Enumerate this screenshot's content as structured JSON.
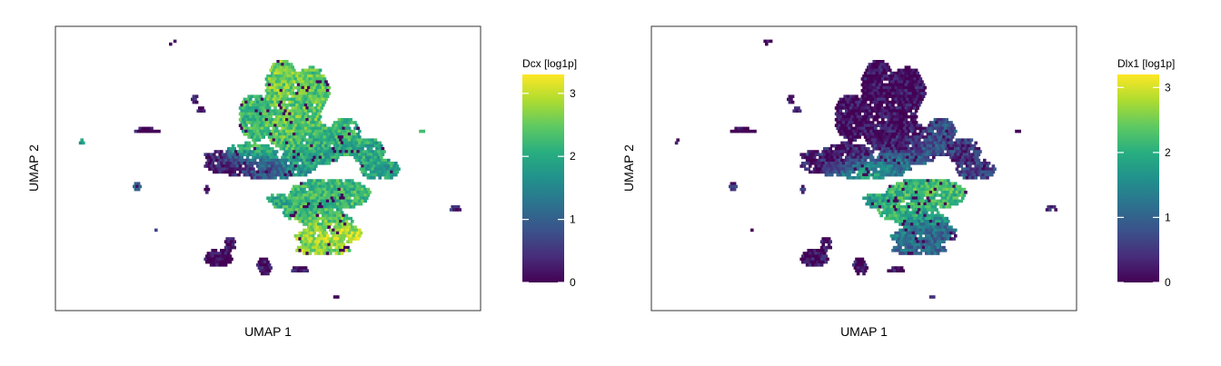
{
  "colormap": "viridis",
  "chart_data": [
    {
      "type": "scatter",
      "subtype": "umap-hexbin",
      "xlabel": "UMAP 1",
      "ylabel": "UMAP 2",
      "colorbar": {
        "title": "Dcx [log1p]",
        "min": 0,
        "max": 3.3,
        "ticks": [
          0,
          1,
          2,
          3
        ]
      },
      "grid": false,
      "legend_placement": "right",
      "expression_pattern": "high (2-3) across the upper and lower-right cluster arms; near 0 in the left central band and the small outlying islands"
    },
    {
      "type": "scatter",
      "subtype": "umap-hexbin",
      "xlabel": "UMAP 1",
      "ylabel": "UMAP 2",
      "colorbar": {
        "title": "Dlx1 [log1p]",
        "min": 0,
        "max": 3.2,
        "ticks": [
          0,
          1,
          2,
          3
        ]
      },
      "grid": false,
      "legend_placement": "right",
      "expression_pattern": "mostly near 0; moderate to high (1-2.5) in the central band and lower-right arm"
    }
  ]
}
